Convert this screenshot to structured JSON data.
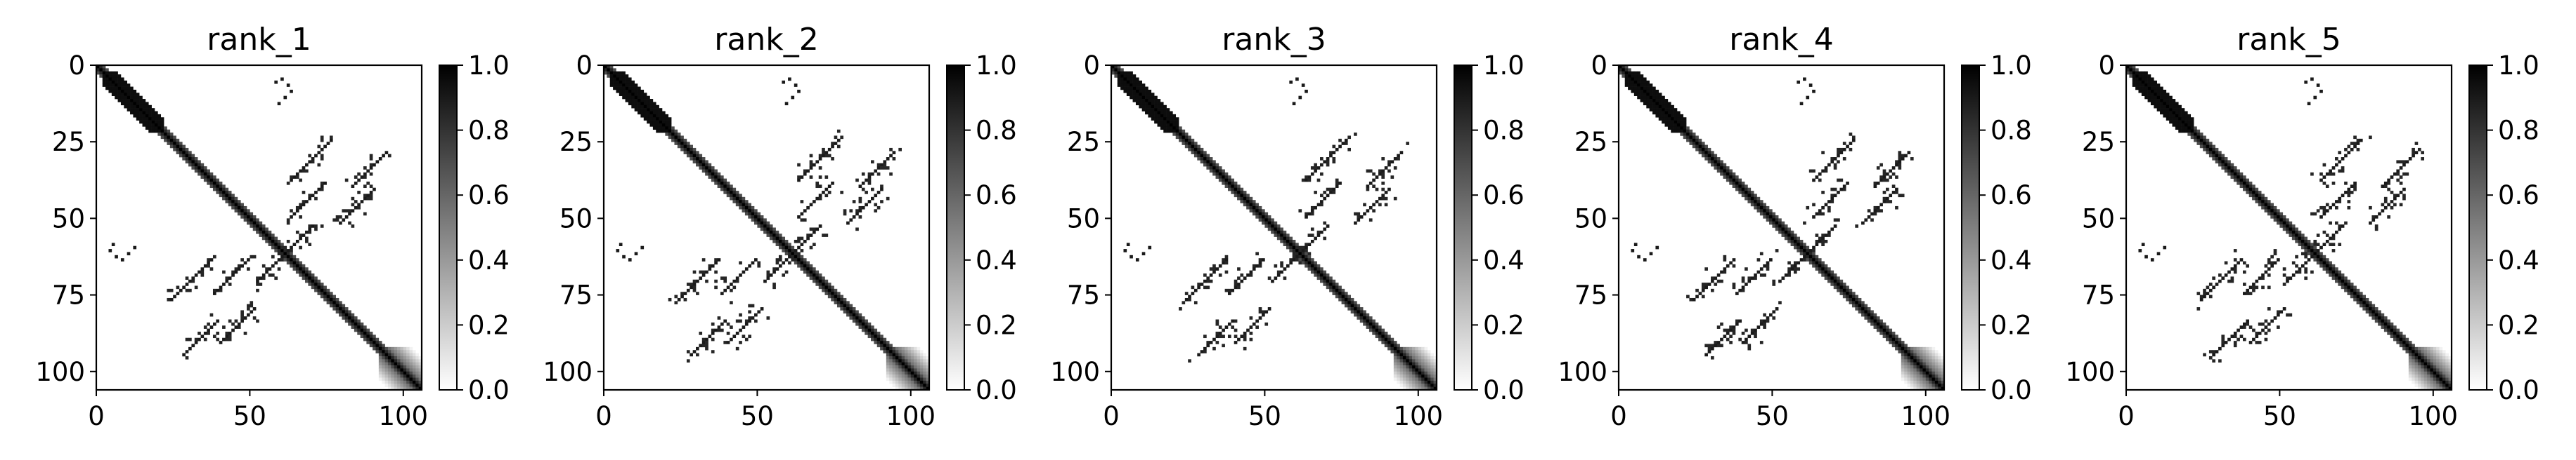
{
  "chart_data": {
    "type": "heatmap",
    "colormap": "gray_r",
    "matrix_size": 106,
    "xlim": [
      0,
      106
    ],
    "ylim": [
      106,
      0
    ],
    "xticks": [
      0,
      50,
      100
    ],
    "yticks": [
      0,
      25,
      50,
      75,
      100
    ],
    "colorbar": {
      "min": 0.0,
      "max": 1.0,
      "ticks": [
        "0.0",
        "0.2",
        "0.4",
        "0.6",
        "0.8",
        "1.0"
      ]
    },
    "panels": [
      {
        "title": "rank_1"
      },
      {
        "title": "rank_2"
      },
      {
        "title": "rank_3"
      },
      {
        "title": "rank_4"
      },
      {
        "title": "rank_5"
      }
    ],
    "features": {
      "diagonal_band_width": 2,
      "strong_block": [
        2,
        22
      ],
      "soft_block": [
        92,
        106
      ],
      "sheet_pairs": [
        {
          "i": [
            24,
            38
          ],
          "j": [
            62,
            76
          ],
          "orientation": "anti"
        },
        {
          "i": [
            38,
            50
          ],
          "j": [
            62,
            74
          ],
          "orientation": "anti"
        },
        {
          "i": [
            40,
            52
          ],
          "j": [
            78,
            90
          ],
          "orientation": "anti"
        },
        {
          "i": [
            28,
            40
          ],
          "j": [
            82,
            94
          ],
          "orientation": "anti"
        },
        {
          "i": [
            52,
            62
          ],
          "j": [
            60,
            70
          ],
          "orientation": "anti"
        }
      ],
      "isolated_contacts": [
        {
          "i": 4,
          "j": 60
        },
        {
          "i": 6,
          "j": 62
        },
        {
          "i": 8,
          "j": 63
        },
        {
          "i": 10,
          "j": 61
        },
        {
          "i": 12,
          "j": 59
        },
        {
          "i": 5,
          "j": 58
        }
      ]
    }
  }
}
